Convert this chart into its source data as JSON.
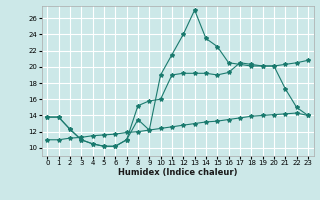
{
  "xlabel": "Humidex (Indice chaleur)",
  "background_color": "#cce8e8",
  "grid_color": "#ffffff",
  "line_color": "#1a7a6e",
  "xlim": [
    -0.5,
    23.5
  ],
  "ylim": [
    9.0,
    27.5
  ],
  "xticks": [
    0,
    1,
    2,
    3,
    4,
    5,
    6,
    7,
    8,
    9,
    10,
    11,
    12,
    13,
    14,
    15,
    16,
    17,
    18,
    19,
    20,
    21,
    22,
    23
  ],
  "yticks": [
    10,
    12,
    14,
    16,
    18,
    20,
    22,
    24,
    26
  ],
  "series1_x": [
    0,
    1,
    2,
    3,
    4,
    5,
    6,
    7,
    8,
    9,
    10,
    11,
    12,
    13,
    14,
    15,
    16,
    17,
    18,
    19,
    20,
    21,
    22,
    23
  ],
  "series1_y": [
    13.8,
    13.8,
    12.3,
    11.0,
    10.5,
    10.2,
    10.2,
    11.0,
    13.5,
    12.2,
    19.0,
    21.5,
    24.0,
    27.0,
    23.5,
    22.5,
    20.5,
    20.3,
    20.1,
    20.1,
    20.1,
    17.3,
    15.0,
    14.0
  ],
  "series2_x": [
    0,
    1,
    2,
    3,
    4,
    5,
    6,
    7,
    8,
    9,
    10,
    11,
    12,
    13,
    14,
    15,
    16,
    17,
    18,
    19,
    20,
    21,
    22,
    23
  ],
  "series2_y": [
    13.8,
    13.8,
    12.3,
    11.0,
    10.5,
    10.2,
    10.2,
    11.0,
    15.2,
    15.8,
    16.0,
    19.0,
    19.2,
    19.2,
    19.2,
    19.0,
    19.3,
    20.5,
    20.3,
    20.1,
    20.1,
    20.3,
    20.5,
    20.8
  ],
  "series3_x": [
    0,
    1,
    2,
    3,
    4,
    5,
    6,
    7,
    8,
    9,
    10,
    11,
    12,
    13,
    14,
    15,
    16,
    17,
    18,
    19,
    20,
    21,
    22,
    23
  ],
  "series3_y": [
    11.0,
    11.0,
    11.2,
    11.3,
    11.5,
    11.6,
    11.7,
    11.9,
    12.0,
    12.2,
    12.4,
    12.6,
    12.8,
    13.0,
    13.2,
    13.3,
    13.5,
    13.7,
    13.9,
    14.0,
    14.1,
    14.2,
    14.3,
    14.0
  ]
}
